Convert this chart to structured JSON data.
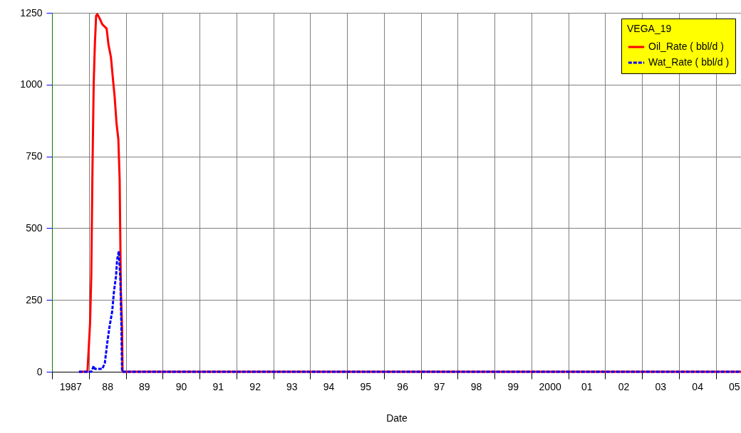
{
  "chart_data": {
    "type": "line",
    "xlabel": "Date",
    "legend_title": "VEGA_19",
    "legend": "top right",
    "grid": true,
    "marker": "none",
    "xlim": [
      "1987-01-01",
      "2005-09-08"
    ],
    "ylim": [
      0,
      1250
    ],
    "yticks": [
      0,
      250,
      500,
      750,
      1000,
      1250
    ],
    "xticks": [
      {
        "value": "1987-07-02",
        "label": "1987"
      },
      {
        "value": "1988-07-02",
        "label": "88"
      },
      {
        "value": "1989-07-02",
        "label": "89"
      },
      {
        "value": "1990-07-02",
        "label": "90"
      },
      {
        "value": "1991-07-02",
        "label": "91"
      },
      {
        "value": "1992-07-02",
        "label": "92"
      },
      {
        "value": "1993-07-02",
        "label": "93"
      },
      {
        "value": "1994-07-02",
        "label": "94"
      },
      {
        "value": "1995-07-02",
        "label": "95"
      },
      {
        "value": "1996-07-02",
        "label": "96"
      },
      {
        "value": "1997-07-02",
        "label": "97"
      },
      {
        "value": "1998-07-02",
        "label": "98"
      },
      {
        "value": "1999-07-02",
        "label": "99"
      },
      {
        "value": "2000-07-02",
        "label": "2000"
      },
      {
        "value": "2001-07-02",
        "label": "01"
      },
      {
        "value": "2002-07-02",
        "label": "02"
      },
      {
        "value": "2003-07-02",
        "label": "03"
      },
      {
        "value": "2004-07-02",
        "label": "04"
      },
      {
        "value": "2005-07-02",
        "label": "05"
      },
      {
        "value": "1987-01-01",
        "label": null
      },
      {
        "value": "1988-01-01",
        "label": null
      },
      {
        "value": "1989-01-01",
        "label": null
      },
      {
        "value": "1990-01-01",
        "label": null
      },
      {
        "value": "1991-01-01",
        "label": null
      },
      {
        "value": "1992-01-01",
        "label": null
      },
      {
        "value": "1993-01-01",
        "label": null
      },
      {
        "value": "1994-01-01",
        "label": null
      },
      {
        "value": "1995-01-01",
        "label": null
      },
      {
        "value": "1996-01-01",
        "label": null
      },
      {
        "value": "1997-01-01",
        "label": null
      },
      {
        "value": "1998-01-01",
        "label": null
      },
      {
        "value": "1999-01-01",
        "label": null
      },
      {
        "value": "2000-01-01",
        "label": null
      },
      {
        "value": "2001-01-01",
        "label": null
      },
      {
        "value": "2002-01-01",
        "label": null
      },
      {
        "value": "2003-01-01",
        "label": null
      },
      {
        "value": "2004-01-01",
        "label": null
      },
      {
        "value": "2005-01-01",
        "label": null
      }
    ],
    "series": [
      {
        "name": "Oil_Rate ( bbl/d )",
        "color": "#ff0000",
        "line_style": "solid",
        "x": [
          "1987-09-25",
          "1987-12-18",
          "1988-01-01",
          "1988-01-13",
          "1988-01-25",
          "1988-02-06",
          "1988-02-18",
          "1988-03-01",
          "1988-03-13",
          "1988-03-25",
          "1988-04-18",
          "1988-05-13",
          "1988-06-25",
          "1988-07-13",
          "1988-08-07",
          "1988-08-25",
          "1988-09-13",
          "1988-10-01",
          "1988-10-19",
          "1988-11-01",
          "1988-11-13",
          "1988-11-25",
          "1988-11-30",
          "2005-09-08"
        ],
        "values": [
          0,
          0,
          90,
          170,
          335,
          710,
          1005,
          1145,
          1240,
          1245,
          1230,
          1210,
          1195,
          1140,
          1095,
          1025,
          955,
          865,
          810,
          670,
          285,
          150,
          0,
          0
        ]
      },
      {
        "name": "Wat_Rate ( bbl/d )",
        "color": "#0000ff",
        "line_style": "dashed",
        "x": [
          "1987-09-25",
          "1988-01-25",
          "1988-02-18",
          "1988-03-01",
          "1988-03-25",
          "1988-05-13",
          "1988-06-07",
          "1988-07-01",
          "1988-07-25",
          "1988-08-19",
          "1988-09-06",
          "1988-09-25",
          "1988-10-07",
          "1988-10-24",
          "1988-11-08",
          "1988-11-18",
          "1988-11-25",
          "2005-09-08"
        ],
        "values": [
          0,
          0,
          20,
          10,
          10,
          10,
          30,
          100,
          160,
          210,
          280,
          330,
          390,
          420,
          320,
          160,
          0,
          0
        ]
      }
    ]
  }
}
